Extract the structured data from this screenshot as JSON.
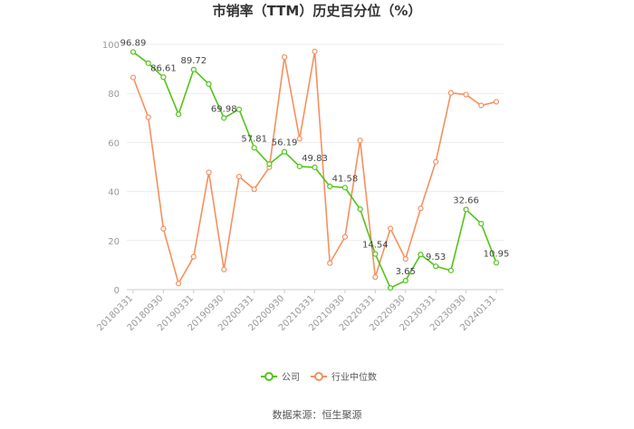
{
  "chart_data": {
    "type": "line",
    "title": "市销率（TTM）历史百分位（%）",
    "source": "数据来源：恒生聚源",
    "ylim": [
      0,
      100
    ],
    "yticks": [
      0,
      20,
      40,
      60,
      80,
      100
    ],
    "grid": true,
    "legend_position": "bottom",
    "x": [
      "20180331",
      "20180630",
      "20180930",
      "20181231",
      "20190331",
      "20190630",
      "20190930",
      "20191231",
      "20200331",
      "20200630",
      "20200930",
      "20201231",
      "20210331",
      "20210630",
      "20210930",
      "20211231",
      "20220331",
      "20220630",
      "20220930",
      "20221231",
      "20230331",
      "20230630",
      "20230930",
      "20231231",
      "20240131"
    ],
    "xtick_labels": [
      "20180331",
      "20180930",
      "20190331",
      "20190930",
      "20200331",
      "20200930",
      "20210331",
      "20210930",
      "20220331",
      "20220930",
      "20230331",
      "20230930",
      "20240131"
    ],
    "series": [
      {
        "name": "公司",
        "color": "#52c41a",
        "values": [
          96.89,
          92.3,
          86.61,
          71.5,
          89.72,
          83.8,
          69.98,
          73.5,
          57.81,
          51.2,
          56.19,
          50.2,
          49.83,
          42.1,
          41.58,
          32.8,
          14.54,
          0.7,
          3.65,
          14.3,
          9.53,
          7.8,
          32.66,
          26.9,
          10.95
        ],
        "labels": {
          "0": "96.89",
          "2": "86.61",
          "4": "89.72",
          "6": "69.98",
          "8": "57.81",
          "10": "56.19",
          "12": "49.83",
          "14": "41.58",
          "16": "14.54",
          "18": "3.65",
          "20": "9.53",
          "22": "32.66",
          "24": "10.95"
        }
      },
      {
        "name": "行业中位数",
        "color": "#f5905f",
        "values": [
          86.5,
          70.3,
          24.8,
          2.5,
          13.4,
          47.8,
          8.2,
          46.1,
          40.9,
          49.9,
          94.8,
          61.5,
          97.1,
          10.8,
          21.5,
          60.8,
          5.1,
          24.9,
          12.5,
          33.1,
          52.1,
          80.2,
          79.5,
          75.1,
          76.6
        ]
      }
    ]
  }
}
